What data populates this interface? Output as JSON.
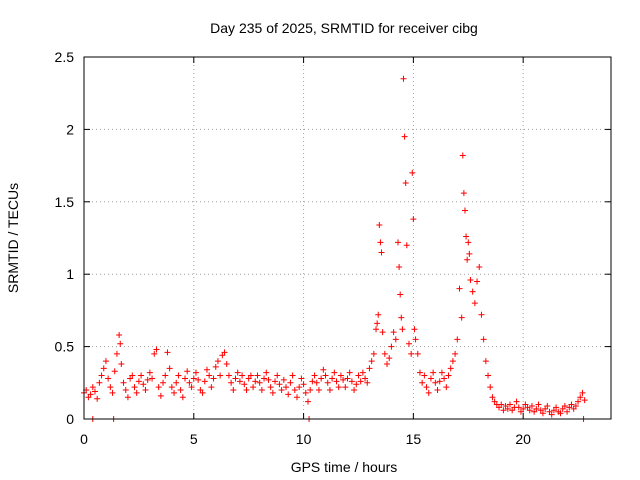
{
  "chart_data": {
    "type": "scatter",
    "title": "Day 235 of 2025, SRMTID for receiver cibg",
    "xlabel": "GPS time / hours",
    "ylabel": "SRMTID / TECUs",
    "xlim": [
      0,
      24
    ],
    "ylim": [
      0,
      2.5
    ],
    "xticks": [
      0,
      5,
      10,
      15,
      20
    ],
    "xtick_labels": [
      "0",
      "5",
      "10",
      "15",
      "20"
    ],
    "yticks": [
      0,
      0.5,
      1,
      1.5,
      2,
      2.5
    ],
    "ytick_labels": [
      "0",
      "0.5",
      "1",
      "1.5",
      "2",
      "2.5"
    ],
    "grid": true,
    "marker": "+",
    "color": "#ff0000",
    "series": [
      {
        "name": "SRMTID",
        "points": [
          [
            0.0,
            0.18
          ],
          [
            0.1,
            0.2
          ],
          [
            0.2,
            0.15
          ],
          [
            0.3,
            0.17
          ],
          [
            0.4,
            0.22
          ],
          [
            0.5,
            0.19
          ],
          [
            0.6,
            0.14
          ],
          [
            0.7,
            0.25
          ],
          [
            0.8,
            0.3
          ],
          [
            0.9,
            0.35
          ],
          [
            1.0,
            0.4
          ],
          [
            1.1,
            0.28
          ],
          [
            1.2,
            0.22
          ],
          [
            1.3,
            0.18
          ],
          [
            1.4,
            0.33
          ],
          [
            1.5,
            0.45
          ],
          [
            1.6,
            0.58
          ],
          [
            1.65,
            0.52
          ],
          [
            1.7,
            0.38
          ],
          [
            1.8,
            0.25
          ],
          [
            1.9,
            0.2
          ],
          [
            2.0,
            0.15
          ],
          [
            2.1,
            0.28
          ],
          [
            2.2,
            0.3
          ],
          [
            2.3,
            0.22
          ],
          [
            2.4,
            0.18
          ],
          [
            2.5,
            0.26
          ],
          [
            2.6,
            0.3
          ],
          [
            2.7,
            0.24
          ],
          [
            2.8,
            0.2
          ],
          [
            2.9,
            0.27
          ],
          [
            3.0,
            0.32
          ],
          [
            3.1,
            0.28
          ],
          [
            3.2,
            0.45
          ],
          [
            3.3,
            0.48
          ],
          [
            3.4,
            0.22
          ],
          [
            3.5,
            0.16
          ],
          [
            3.6,
            0.25
          ],
          [
            3.7,
            0.3
          ],
          [
            3.8,
            0.46
          ],
          [
            3.9,
            0.35
          ],
          [
            4.0,
            0.22
          ],
          [
            4.1,
            0.18
          ],
          [
            4.2,
            0.25
          ],
          [
            4.3,
            0.3
          ],
          [
            4.4,
            0.2
          ],
          [
            4.5,
            0.15
          ],
          [
            4.6,
            0.28
          ],
          [
            4.7,
            0.33
          ],
          [
            4.8,
            0.25
          ],
          [
            4.9,
            0.22
          ],
          [
            5.0,
            0.28
          ],
          [
            5.1,
            0.32
          ],
          [
            5.2,
            0.27
          ],
          [
            5.3,
            0.2
          ],
          [
            5.4,
            0.18
          ],
          [
            5.5,
            0.26
          ],
          [
            5.6,
            0.34
          ],
          [
            5.7,
            0.3
          ],
          [
            5.8,
            0.22
          ],
          [
            5.9,
            0.28
          ],
          [
            6.0,
            0.36
          ],
          [
            6.1,
            0.4
          ],
          [
            6.2,
            0.3
          ],
          [
            6.3,
            0.44
          ],
          [
            6.4,
            0.46
          ],
          [
            6.5,
            0.38
          ],
          [
            6.6,
            0.3
          ],
          [
            6.7,
            0.25
          ],
          [
            6.8,
            0.2
          ],
          [
            6.9,
            0.28
          ],
          [
            7.0,
            0.32
          ],
          [
            7.1,
            0.26
          ],
          [
            7.2,
            0.3
          ],
          [
            7.3,
            0.24
          ],
          [
            7.4,
            0.2
          ],
          [
            7.5,
            0.28
          ],
          [
            7.6,
            0.3
          ],
          [
            7.7,
            0.22
          ],
          [
            7.8,
            0.26
          ],
          [
            7.9,
            0.3
          ],
          [
            8.0,
            0.25
          ],
          [
            8.1,
            0.2
          ],
          [
            8.2,
            0.28
          ],
          [
            8.3,
            0.32
          ],
          [
            8.4,
            0.27
          ],
          [
            8.5,
            0.22
          ],
          [
            8.6,
            0.18
          ],
          [
            8.7,
            0.26
          ],
          [
            8.8,
            0.3
          ],
          [
            8.9,
            0.24
          ],
          [
            9.0,
            0.2
          ],
          [
            9.1,
            0.27
          ],
          [
            9.2,
            0.22
          ],
          [
            9.3,
            0.17
          ],
          [
            9.4,
            0.25
          ],
          [
            9.5,
            0.3
          ],
          [
            9.6,
            0.2
          ],
          [
            9.7,
            0.15
          ],
          [
            9.8,
            0.22
          ],
          [
            9.9,
            0.28
          ],
          [
            10.0,
            0.24
          ],
          [
            10.1,
            0.18
          ],
          [
            10.2,
            0.12
          ],
          [
            10.3,
            0.2
          ],
          [
            10.4,
            0.26
          ],
          [
            10.5,
            0.3
          ],
          [
            10.6,
            0.25
          ],
          [
            10.7,
            0.2
          ],
          [
            10.8,
            0.28
          ],
          [
            10.9,
            0.34
          ],
          [
            11.0,
            0.3
          ],
          [
            11.1,
            0.25
          ],
          [
            11.2,
            0.2
          ],
          [
            11.3,
            0.28
          ],
          [
            11.4,
            0.32
          ],
          [
            11.5,
            0.26
          ],
          [
            11.6,
            0.22
          ],
          [
            11.7,
            0.3
          ],
          [
            11.8,
            0.27
          ],
          [
            11.9,
            0.22
          ],
          [
            12.0,
            0.28
          ],
          [
            12.1,
            0.32
          ],
          [
            12.2,
            0.26
          ],
          [
            12.3,
            0.2
          ],
          [
            12.4,
            0.24
          ],
          [
            12.5,
            0.3
          ],
          [
            12.6,
            0.26
          ],
          [
            12.7,
            0.32
          ],
          [
            12.8,
            0.28
          ],
          [
            12.9,
            0.25
          ],
          [
            13.0,
            0.35
          ],
          [
            13.1,
            0.4
          ],
          [
            13.2,
            0.45
          ],
          [
            13.3,
            0.62
          ],
          [
            13.35,
            0.66
          ],
          [
            13.4,
            0.72
          ],
          [
            13.45,
            1.34
          ],
          [
            13.5,
            1.22
          ],
          [
            13.55,
            1.15
          ],
          [
            13.6,
            0.6
          ],
          [
            13.7,
            0.45
          ],
          [
            13.8,
            0.38
          ],
          [
            13.9,
            0.42
          ],
          [
            14.0,
            0.5
          ],
          [
            14.1,
            0.6
          ],
          [
            14.2,
            0.55
          ],
          [
            14.3,
            1.22
          ],
          [
            14.35,
            1.05
          ],
          [
            14.4,
            0.86
          ],
          [
            14.45,
            0.7
          ],
          [
            14.5,
            0.62
          ],
          [
            14.55,
            2.35
          ],
          [
            14.6,
            1.95
          ],
          [
            14.65,
            1.63
          ],
          [
            14.7,
            1.2
          ],
          [
            14.8,
            0.52
          ],
          [
            14.9,
            0.45
          ],
          [
            14.95,
            1.7
          ],
          [
            15.0,
            1.38
          ],
          [
            15.05,
            0.62
          ],
          [
            15.1,
            0.55
          ],
          [
            15.2,
            0.45
          ],
          [
            15.3,
            0.32
          ],
          [
            15.4,
            0.25
          ],
          [
            15.5,
            0.3
          ],
          [
            15.6,
            0.22
          ],
          [
            15.7,
            0.18
          ],
          [
            15.8,
            0.28
          ],
          [
            15.9,
            0.32
          ],
          [
            16.0,
            0.25
          ],
          [
            16.1,
            0.2
          ],
          [
            16.2,
            0.26
          ],
          [
            16.3,
            0.32
          ],
          [
            16.4,
            0.28
          ],
          [
            16.5,
            0.22
          ],
          [
            16.6,
            0.3
          ],
          [
            16.7,
            0.35
          ],
          [
            16.8,
            0.4
          ],
          [
            16.9,
            0.45
          ],
          [
            17.0,
            0.55
          ],
          [
            17.1,
            0.9
          ],
          [
            17.2,
            0.7
          ],
          [
            17.25,
            1.82
          ],
          [
            17.3,
            1.56
          ],
          [
            17.35,
            1.44
          ],
          [
            17.4,
            1.26
          ],
          [
            17.45,
            1.1
          ],
          [
            17.5,
            1.22
          ],
          [
            17.55,
            1.14
          ],
          [
            17.6,
            0.96
          ],
          [
            17.7,
            0.88
          ],
          [
            17.8,
            0.8
          ],
          [
            17.9,
            0.95
          ],
          [
            18.0,
            1.05
          ],
          [
            18.1,
            0.72
          ],
          [
            18.2,
            0.55
          ],
          [
            18.3,
            0.4
          ],
          [
            18.4,
            0.3
          ],
          [
            18.5,
            0.22
          ],
          [
            18.6,
            0.15
          ],
          [
            18.7,
            0.12
          ],
          [
            18.8,
            0.1
          ],
          [
            18.9,
            0.08
          ],
          [
            19.0,
            0.1
          ],
          [
            19.1,
            0.06
          ],
          [
            19.2,
            0.09
          ],
          [
            19.3,
            0.07
          ],
          [
            19.4,
            0.1
          ],
          [
            19.5,
            0.06
          ],
          [
            19.6,
            0.08
          ],
          [
            19.7,
            0.12
          ],
          [
            19.8,
            0.08
          ],
          [
            19.9,
            0.05
          ],
          [
            20.0,
            0.07
          ],
          [
            20.1,
            0.1
          ],
          [
            20.2,
            0.08
          ],
          [
            20.3,
            0.06
          ],
          [
            20.4,
            0.09
          ],
          [
            20.5,
            0.05
          ],
          [
            20.6,
            0.07
          ],
          [
            20.7,
            0.1
          ],
          [
            20.8,
            0.06
          ],
          [
            20.9,
            0.04
          ],
          [
            21.0,
            0.07
          ],
          [
            21.1,
            0.09
          ],
          [
            21.2,
            0.05
          ],
          [
            21.3,
            0.03
          ],
          [
            21.4,
            0.06
          ],
          [
            21.5,
            0.08
          ],
          [
            21.6,
            0.05
          ],
          [
            21.7,
            0.04
          ],
          [
            21.8,
            0.07
          ],
          [
            21.9,
            0.09
          ],
          [
            22.0,
            0.05
          ],
          [
            22.1,
            0.08
          ],
          [
            22.2,
            0.1
          ],
          [
            22.3,
            0.07
          ],
          [
            22.4,
            0.09
          ],
          [
            22.5,
            0.12
          ],
          [
            22.6,
            0.15
          ],
          [
            22.7,
            0.18
          ],
          [
            22.8,
            0.13
          ],
          [
            0.4,
            0.0
          ],
          [
            1.35,
            0.0
          ],
          [
            10.25,
            0.0
          ],
          [
            22.75,
            0.0
          ]
        ]
      }
    ]
  }
}
